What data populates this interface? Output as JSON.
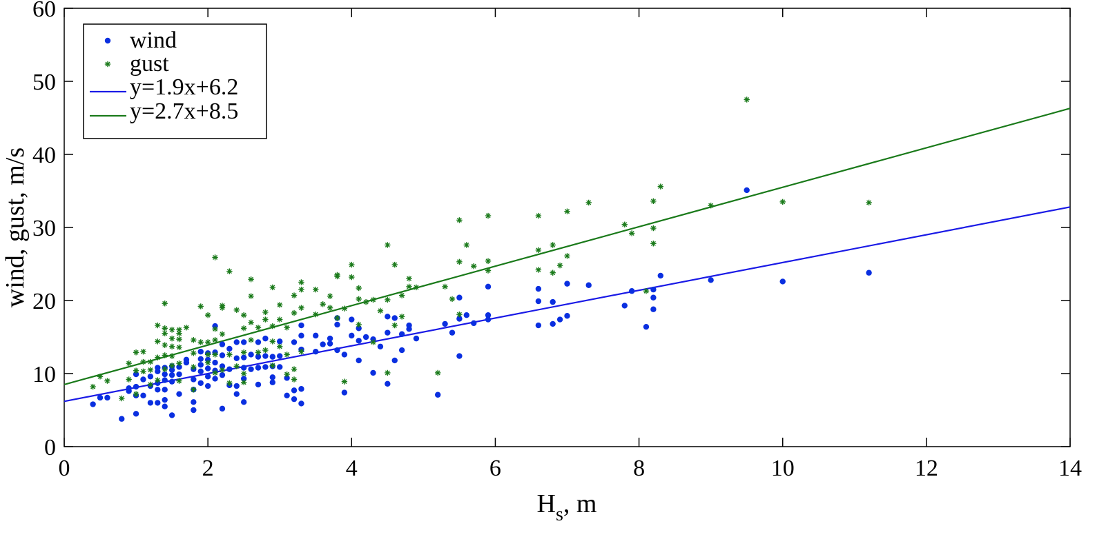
{
  "chart_data": {
    "type": "scatter",
    "xlabel": "H",
    "xlabel_sub": "s",
    "xlabel_unit": ", m",
    "ylabel": "wind, gust, m/s",
    "xlim": [
      0,
      14
    ],
    "ylim": [
      0,
      60
    ],
    "xticks": [
      "0",
      "2",
      "4",
      "6",
      "8",
      "10",
      "12",
      "14"
    ],
    "yticks": [
      "0",
      "10",
      "20",
      "30",
      "40",
      "50",
      "60"
    ],
    "grid": false,
    "legend_position": "top-left",
    "series": [
      {
        "name": "wind",
        "kind": "points",
        "marker": "dot",
        "color": "#0a2fe0",
        "points": [
          [
            0.4,
            5.8
          ],
          [
            0.5,
            6.7
          ],
          [
            0.6,
            6.7
          ],
          [
            0.8,
            3.8
          ],
          [
            0.9,
            7.6
          ],
          [
            0.9,
            8.0
          ],
          [
            1.0,
            4.5
          ],
          [
            1.0,
            7.0
          ],
          [
            1.0,
            8.2
          ],
          [
            1.0,
            9.9
          ],
          [
            1.1,
            7.0
          ],
          [
            1.1,
            9.2
          ],
          [
            1.2,
            6.0
          ],
          [
            1.2,
            8.3
          ],
          [
            1.2,
            9.6
          ],
          [
            1.3,
            6.0
          ],
          [
            1.3,
            7.8
          ],
          [
            1.3,
            8.7
          ],
          [
            1.3,
            10.3
          ],
          [
            1.3,
            10.8
          ],
          [
            1.4,
            5.5
          ],
          [
            1.4,
            6.4
          ],
          [
            1.4,
            7.8
          ],
          [
            1.4,
            9.1
          ],
          [
            1.4,
            9.9
          ],
          [
            1.4,
            10.8
          ],
          [
            1.5,
            4.3
          ],
          [
            1.5,
            8.9
          ],
          [
            1.5,
            9.8
          ],
          [
            1.5,
            10.5
          ],
          [
            1.5,
            11.0
          ],
          [
            1.6,
            7.2
          ],
          [
            1.6,
            9.9
          ],
          [
            1.6,
            10.9
          ],
          [
            1.7,
            11.5
          ],
          [
            1.7,
            11.9
          ],
          [
            1.8,
            5.0
          ],
          [
            1.8,
            6.1
          ],
          [
            1.8,
            7.8
          ],
          [
            1.8,
            9.2
          ],
          [
            1.8,
            10.6
          ],
          [
            1.9,
            8.7
          ],
          [
            1.9,
            10.3
          ],
          [
            1.9,
            11.2
          ],
          [
            1.9,
            12.0
          ],
          [
            1.9,
            13.0
          ],
          [
            2.0,
            8.3
          ],
          [
            2.0,
            9.6
          ],
          [
            2.0,
            10.7
          ],
          [
            2.0,
            11.9
          ],
          [
            2.0,
            12.8
          ],
          [
            2.1,
            9.3
          ],
          [
            2.1,
            10.4
          ],
          [
            2.1,
            11.5
          ],
          [
            2.1,
            12.9
          ],
          [
            2.1,
            16.5
          ],
          [
            2.2,
            5.2
          ],
          [
            2.2,
            9.8
          ],
          [
            2.2,
            11.0
          ],
          [
            2.2,
            12.5
          ],
          [
            2.2,
            14.0
          ],
          [
            2.3,
            8.4
          ],
          [
            2.3,
            10.6
          ],
          [
            2.3,
            13.4
          ],
          [
            2.4,
            7.2
          ],
          [
            2.4,
            8.3
          ],
          [
            2.4,
            12.1
          ],
          [
            2.4,
            14.3
          ],
          [
            2.5,
            6.1
          ],
          [
            2.5,
            9.3
          ],
          [
            2.5,
            10.8
          ],
          [
            2.5,
            12.2
          ],
          [
            2.5,
            14.3
          ],
          [
            2.6,
            10.6
          ],
          [
            2.6,
            12.6
          ],
          [
            2.7,
            8.5
          ],
          [
            2.7,
            10.8
          ],
          [
            2.7,
            12.3
          ],
          [
            2.7,
            14.3
          ],
          [
            2.8,
            10.9
          ],
          [
            2.8,
            12.4
          ],
          [
            2.8,
            14.8
          ],
          [
            2.9,
            8.8
          ],
          [
            2.9,
            9.5
          ],
          [
            2.9,
            11.0
          ],
          [
            2.9,
            12.3
          ],
          [
            3.0,
            10.9
          ],
          [
            3.0,
            12.4
          ],
          [
            3.0,
            14.4
          ],
          [
            3.1,
            7.0
          ],
          [
            3.1,
            9.4
          ],
          [
            3.2,
            6.5
          ],
          [
            3.2,
            7.7
          ],
          [
            3.2,
            14.3
          ],
          [
            3.3,
            5.9
          ],
          [
            3.3,
            7.9
          ],
          [
            3.3,
            13.3
          ],
          [
            3.3,
            15.2
          ],
          [
            3.3,
            16.6
          ],
          [
            3.5,
            13.0
          ],
          [
            3.5,
            15.2
          ],
          [
            3.6,
            14.0
          ],
          [
            3.7,
            14.1
          ],
          [
            3.7,
            14.8
          ],
          [
            3.8,
            13.2
          ],
          [
            3.8,
            16.7
          ],
          [
            3.8,
            17.6
          ],
          [
            3.9,
            7.4
          ],
          [
            3.9,
            12.6
          ],
          [
            4.0,
            15.2
          ],
          [
            4.0,
            17.4
          ],
          [
            4.1,
            11.8
          ],
          [
            4.1,
            14.5
          ],
          [
            4.1,
            16.2
          ],
          [
            4.2,
            15.0
          ],
          [
            4.3,
            10.1
          ],
          [
            4.3,
            14.7
          ],
          [
            4.4,
            13.7
          ],
          [
            4.5,
            8.6
          ],
          [
            4.5,
            15.6
          ],
          [
            4.5,
            17.8
          ],
          [
            4.6,
            11.8
          ],
          [
            4.6,
            17.6
          ],
          [
            4.7,
            13.2
          ],
          [
            4.7,
            15.4
          ],
          [
            4.8,
            16.1
          ],
          [
            4.8,
            16.6
          ],
          [
            4.9,
            14.8
          ],
          [
            5.2,
            7.1
          ],
          [
            5.3,
            16.8
          ],
          [
            5.4,
            15.6
          ],
          [
            5.5,
            12.4
          ],
          [
            5.5,
            17.5
          ],
          [
            5.5,
            20.4
          ],
          [
            5.6,
            18.0
          ],
          [
            5.7,
            16.9
          ],
          [
            5.9,
            17.4
          ],
          [
            5.9,
            18.0
          ],
          [
            5.9,
            21.9
          ],
          [
            6.6,
            16.6
          ],
          [
            6.6,
            19.9
          ],
          [
            6.6,
            21.6
          ],
          [
            6.8,
            16.8
          ],
          [
            6.8,
            19.8
          ],
          [
            6.9,
            17.4
          ],
          [
            7.0,
            17.9
          ],
          [
            7.0,
            22.3
          ],
          [
            7.3,
            22.1
          ],
          [
            7.8,
            19.3
          ],
          [
            7.9,
            21.3
          ],
          [
            8.1,
            16.4
          ],
          [
            8.2,
            18.8
          ],
          [
            8.2,
            20.4
          ],
          [
            8.2,
            21.5
          ],
          [
            8.3,
            23.4
          ],
          [
            9.0,
            22.8
          ],
          [
            9.5,
            35.1
          ],
          [
            10.0,
            22.6
          ],
          [
            11.2,
            23.8
          ]
        ]
      },
      {
        "name": "gust",
        "kind": "points",
        "marker": "asterisk",
        "color": "#1a7a1a",
        "points": [
          [
            0.4,
            8.2
          ],
          [
            0.5,
            9.6
          ],
          [
            0.6,
            9.0
          ],
          [
            0.8,
            6.6
          ],
          [
            0.9,
            9.2
          ],
          [
            0.9,
            11.4
          ],
          [
            1.0,
            7.2
          ],
          [
            1.0,
            10.4
          ],
          [
            1.0,
            12.9
          ],
          [
            1.1,
            10.3
          ],
          [
            1.1,
            11.6
          ],
          [
            1.1,
            13.0
          ],
          [
            1.2,
            8.5
          ],
          [
            1.2,
            10.5
          ],
          [
            1.2,
            11.6
          ],
          [
            1.3,
            9.1
          ],
          [
            1.3,
            12.2
          ],
          [
            1.3,
            14.4
          ],
          [
            1.3,
            16.6
          ],
          [
            1.4,
            10.6
          ],
          [
            1.4,
            12.5
          ],
          [
            1.4,
            13.9
          ],
          [
            1.4,
            15.5
          ],
          [
            1.4,
            16.2
          ],
          [
            1.4,
            19.6
          ],
          [
            1.5,
            11.1
          ],
          [
            1.5,
            12.4
          ],
          [
            1.5,
            13.7
          ],
          [
            1.5,
            14.8
          ],
          [
            1.5,
            16.0
          ],
          [
            1.6,
            9.0
          ],
          [
            1.6,
            11.4
          ],
          [
            1.6,
            13.6
          ],
          [
            1.6,
            14.7
          ],
          [
            1.6,
            15.5
          ],
          [
            1.6,
            16.0
          ],
          [
            1.7,
            16.3
          ],
          [
            1.8,
            7.8
          ],
          [
            1.8,
            10.9
          ],
          [
            1.8,
            12.8
          ],
          [
            1.8,
            14.6
          ],
          [
            1.9,
            14.3
          ],
          [
            1.9,
            19.2
          ],
          [
            2.0,
            11.5
          ],
          [
            2.0,
            12.6
          ],
          [
            2.0,
            14.3
          ],
          [
            2.0,
            18.0
          ],
          [
            2.1,
            10.1
          ],
          [
            2.1,
            12.6
          ],
          [
            2.1,
            14.6
          ],
          [
            2.1,
            16.1
          ],
          [
            2.1,
            25.9
          ],
          [
            2.2,
            10.5
          ],
          [
            2.2,
            15.4
          ],
          [
            2.2,
            19.0
          ],
          [
            2.2,
            19.3
          ],
          [
            2.3,
            8.7
          ],
          [
            2.3,
            12.6
          ],
          [
            2.3,
            24.0
          ],
          [
            2.4,
            11.0
          ],
          [
            2.4,
            18.7
          ],
          [
            2.5,
            8.8
          ],
          [
            2.5,
            10.0
          ],
          [
            2.5,
            12.9
          ],
          [
            2.5,
            16.2
          ],
          [
            2.5,
            18.0
          ],
          [
            2.6,
            14.6
          ],
          [
            2.6,
            17.0
          ],
          [
            2.6,
            20.6
          ],
          [
            2.6,
            22.9
          ],
          [
            2.7,
            12.9
          ],
          [
            2.7,
            16.3
          ],
          [
            2.8,
            13.2
          ],
          [
            2.8,
            17.4
          ],
          [
            2.8,
            18.4
          ],
          [
            2.9,
            11.1
          ],
          [
            2.9,
            14.4
          ],
          [
            2.9,
            16.5
          ],
          [
            2.9,
            21.8
          ],
          [
            3.0,
            13.7
          ],
          [
            3.0,
            17.4
          ],
          [
            3.0,
            19.4
          ],
          [
            3.1,
            9.9
          ],
          [
            3.1,
            12.6
          ],
          [
            3.1,
            16.3
          ],
          [
            3.2,
            9.2
          ],
          [
            3.2,
            10.6
          ],
          [
            3.2,
            18.3
          ],
          [
            3.2,
            20.7
          ],
          [
            3.3,
            13.0
          ],
          [
            3.3,
            19.0
          ],
          [
            3.3,
            21.5
          ],
          [
            3.3,
            22.5
          ],
          [
            3.5,
            18.1
          ],
          [
            3.5,
            21.5
          ],
          [
            3.6,
            19.5
          ],
          [
            3.7,
            19.0
          ],
          [
            3.7,
            20.6
          ],
          [
            3.8,
            17.6
          ],
          [
            3.8,
            23.3
          ],
          [
            3.8,
            23.5
          ],
          [
            3.9,
            8.9
          ],
          [
            3.9,
            18.9
          ],
          [
            4.0,
            23.2
          ],
          [
            4.0,
            24.9
          ],
          [
            4.1,
            16.7
          ],
          [
            4.1,
            20.2
          ],
          [
            4.1,
            21.7
          ],
          [
            4.2,
            19.8
          ],
          [
            4.3,
            14.3
          ],
          [
            4.3,
            20.1
          ],
          [
            4.4,
            18.6
          ],
          [
            4.5,
            10.1
          ],
          [
            4.5,
            20.1
          ],
          [
            4.5,
            27.6
          ],
          [
            4.6,
            16.6
          ],
          [
            4.6,
            24.9
          ],
          [
            4.7,
            17.8
          ],
          [
            4.7,
            20.7
          ],
          [
            4.8,
            21.9
          ],
          [
            4.8,
            23.0
          ],
          [
            4.9,
            21.8
          ],
          [
            5.2,
            10.1
          ],
          [
            5.3,
            21.9
          ],
          [
            5.4,
            20.2
          ],
          [
            5.5,
            18.1
          ],
          [
            5.5,
            25.3
          ],
          [
            5.5,
            31.0
          ],
          [
            5.6,
            27.6
          ],
          [
            5.7,
            24.7
          ],
          [
            5.9,
            24.1
          ],
          [
            5.9,
            25.4
          ],
          [
            5.9,
            31.6
          ],
          [
            6.6,
            24.2
          ],
          [
            6.6,
            26.9
          ],
          [
            6.6,
            31.6
          ],
          [
            6.8,
            23.8
          ],
          [
            6.8,
            27.6
          ],
          [
            6.9,
            24.8
          ],
          [
            7.0,
            26.1
          ],
          [
            7.0,
            32.2
          ],
          [
            7.3,
            33.4
          ],
          [
            7.8,
            30.4
          ],
          [
            7.9,
            29.2
          ],
          [
            8.1,
            21.3
          ],
          [
            8.2,
            27.8
          ],
          [
            8.2,
            29.9
          ],
          [
            8.2,
            33.6
          ],
          [
            8.3,
            35.6
          ],
          [
            9.0,
            33.0
          ],
          [
            9.5,
            47.5
          ],
          [
            10.0,
            33.5
          ],
          [
            11.2,
            33.4
          ]
        ]
      },
      {
        "name": "y=1.9x+6.2",
        "kind": "line",
        "color": "#1a1ae6",
        "slope": 1.9,
        "intercept": 6.2,
        "x_range": [
          0,
          14
        ]
      },
      {
        "name": "y=2.7x+8.5",
        "kind": "line",
        "color": "#1a7a1a",
        "slope": 2.7,
        "intercept": 8.5,
        "x_range": [
          0,
          14
        ]
      }
    ]
  }
}
